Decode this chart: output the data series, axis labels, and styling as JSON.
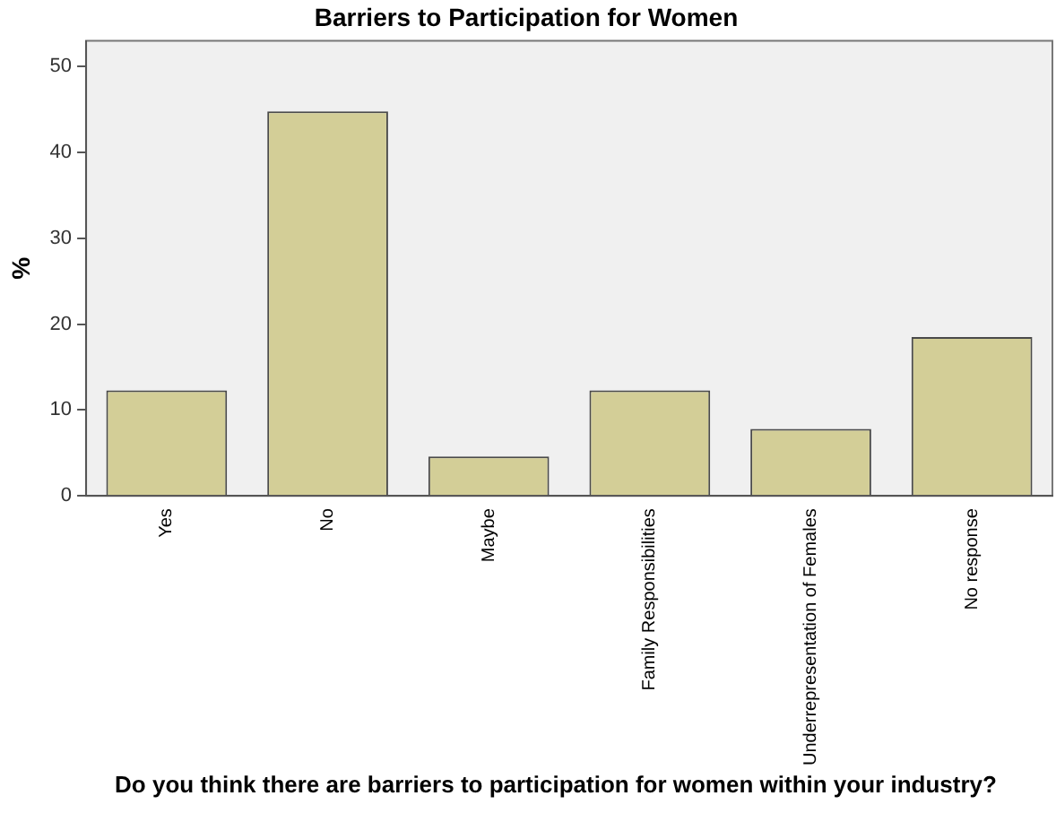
{
  "chart_data": {
    "type": "bar",
    "title": "Barriers to Participation for Women",
    "xlabel": "Do you think there are barriers to participation for women within your industry?",
    "ylabel": "%",
    "categories": [
      "Yes",
      "No",
      "Maybe",
      "Family Responsibilities",
      "Underrepresentation of Females",
      "No response"
    ],
    "values": [
      12.3,
      44.8,
      4.6,
      12.3,
      7.8,
      18.5
    ],
    "color": "#d3ce97",
    "ylim": [
      0,
      53
    ],
    "yticks": [
      0,
      10,
      20,
      30,
      40,
      50
    ],
    "grid": false,
    "legend": false
  }
}
